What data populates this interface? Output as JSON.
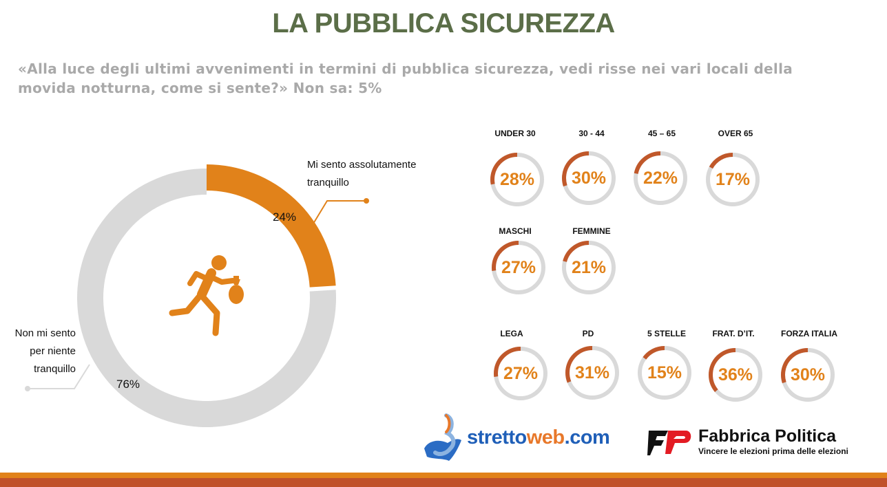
{
  "header": {
    "title": "LA PUBBLICA SICUREZZA",
    "question_line1": "«Alla luce degli ultimi avvenimenti in termini di pubblica sicurezza, vedi risse nei vari locali della",
    "question_line2": "movida notturna, come si sente?» Non sa:  5%"
  },
  "chart_data": [
    {
      "type": "pie",
      "variant": "donut",
      "categories": [
        "Mi sento assolutamente tranquillo",
        "Non mi sento per niente tranquillo"
      ],
      "values": [
        24,
        76
      ],
      "value_labels": [
        "24%",
        "76%"
      ],
      "colors": [
        "#e1821a",
        "#d9d9d9"
      ],
      "label_lines": {
        "tranquillo": [
          "Mi sento assolutamente",
          "tranquillo"
        ],
        "non_tranquillo": [
          "Non mi sento",
          "per niente",
          "tranquillo"
        ]
      },
      "center_icon": "running-thief-icon"
    },
    {
      "type": "gauge-grid",
      "ring_color": "#c0582a",
      "track_color": "#d9d9d9",
      "value_color": "#e1821a",
      "groups": [
        {
          "name": "UNDER 30",
          "value": 28,
          "label": "28%"
        },
        {
          "name": "30 - 44",
          "value": 30,
          "label": "30%"
        },
        {
          "name": "45 – 65",
          "value": 22,
          "label": "22%"
        },
        {
          "name": "OVER 65",
          "value": 17,
          "label": "17%"
        },
        {
          "name": "MASCHI",
          "value": 27,
          "label": "27%"
        },
        {
          "name": "FEMMINE",
          "value": 21,
          "label": "21%"
        },
        {
          "name": "LEGA",
          "value": 27,
          "label": "27%"
        },
        {
          "name": "PD",
          "value": 31,
          "label": "31%"
        },
        {
          "name": "5 STELLE",
          "value": 15,
          "label": "15%"
        },
        {
          "name": "FRAT. D’IT.",
          "value": 36,
          "label": "36%"
        },
        {
          "name": "FORZA ITALIA",
          "value": 30,
          "label": "30%"
        }
      ]
    }
  ],
  "logos": {
    "strettoweb_a": "stretto",
    "strettoweb_b": "web",
    "strettoweb_c": ".com",
    "fabbrica_name": "Fabbrica Politica",
    "fabbrica_tagline": "Vincere le elezioni prima delle elezioni"
  }
}
